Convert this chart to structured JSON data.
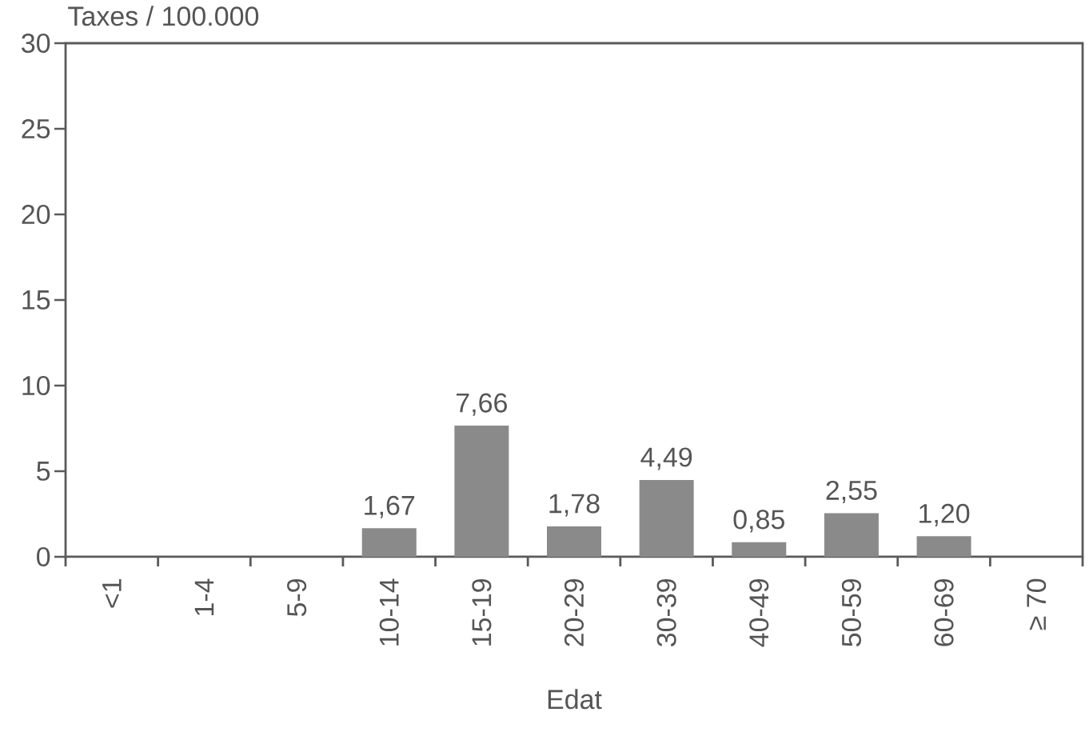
{
  "chart_data": {
    "type": "bar",
    "ylabel": "Taxes / 100.000",
    "xlabel": "Edat",
    "categories": [
      "<1",
      "1-4",
      "5-9",
      "10-14",
      "15-19",
      "20-29",
      "30-39",
      "40-49",
      "50-59",
      "60-69",
      "≥ 70"
    ],
    "values": [
      null,
      null,
      null,
      1.67,
      7.66,
      1.78,
      4.49,
      0.85,
      2.55,
      1.2,
      null
    ],
    "value_labels": [
      null,
      null,
      null,
      "1,67",
      "7,66",
      "1,78",
      "4,49",
      "0,85",
      "2,55",
      "1,20",
      null
    ],
    "color": "#8a8a8a",
    "ylim": [
      0,
      30
    ],
    "yticks": [
      0,
      5,
      10,
      15,
      20,
      25,
      30
    ]
  }
}
